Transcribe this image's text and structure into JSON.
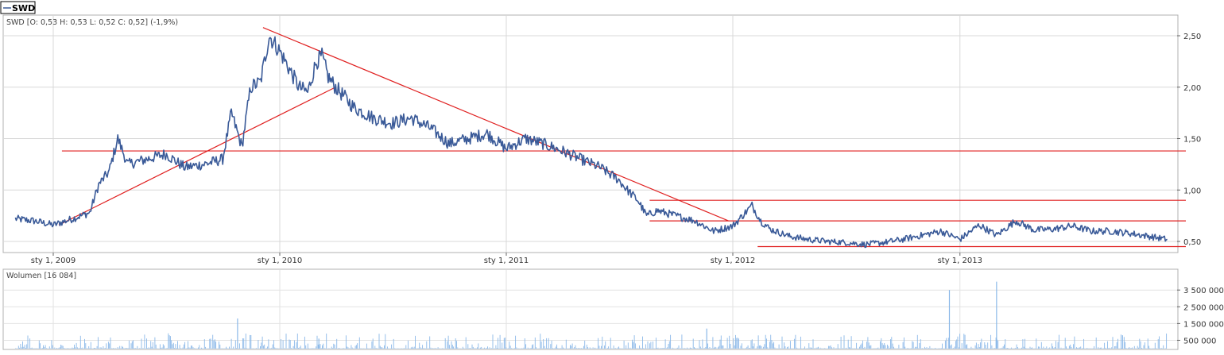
{
  "legend_tab": {
    "label": "SWD"
  },
  "price_panel": {
    "info": "SWD [O: 0,53  H: 0,53  L: 0,52  C: 0,52] (-1,9%)"
  },
  "volume_panel": {
    "info": "Wolumen [16 084]"
  },
  "chart_data": [
    {
      "type": "line",
      "series": [
        {
          "name": "SWD",
          "x": [
            "2008-11-01",
            "2008-12-01",
            "2009-01-01",
            "2009-02-01",
            "2009-03-01",
            "2009-03-15",
            "2009-04-01",
            "2009-04-15",
            "2009-05-01",
            "2009-06-01",
            "2009-07-01",
            "2009-08-01",
            "2009-09-01",
            "2009-10-01",
            "2009-10-15",
            "2009-11-01",
            "2009-11-15",
            "2009-12-01",
            "2009-12-15",
            "2010-01-01",
            "2010-02-01",
            "2010-02-15",
            "2010-03-01",
            "2010-03-10",
            "2010-03-20",
            "2010-04-01",
            "2010-05-01",
            "2010-06-01",
            "2010-07-01",
            "2010-08-01",
            "2010-09-01",
            "2010-10-01",
            "2010-11-01",
            "2010-12-01",
            "2011-01-01",
            "2011-02-01",
            "2011-03-01",
            "2011-04-01",
            "2011-05-01",
            "2011-06-01",
            "2011-07-01",
            "2011-07-15",
            "2011-08-01",
            "2011-08-15",
            "2011-09-01",
            "2011-10-01",
            "2011-11-01",
            "2011-12-01",
            "2012-01-01",
            "2012-02-01",
            "2012-02-15",
            "2012-03-01",
            "2012-04-01",
            "2012-05-01",
            "2012-06-01",
            "2012-07-01",
            "2012-08-01",
            "2012-09-01",
            "2012-10-01",
            "2012-11-01",
            "2012-12-01",
            "2013-01-01",
            "2013-02-01",
            "2013-03-01",
            "2013-04-01",
            "2013-05-01",
            "2013-06-01",
            "2013-07-01",
            "2013-08-01",
            "2013-09-01",
            "2013-10-01",
            "2013-11-01",
            "2013-12-01"
          ],
          "values": [
            0.72,
            0.7,
            0.66,
            0.72,
            0.78,
            1.05,
            1.18,
            1.5,
            1.25,
            1.3,
            1.35,
            1.22,
            1.25,
            1.3,
            1.75,
            1.42,
            2.0,
            2.05,
            2.5,
            2.35,
            2.0,
            1.95,
            2.25,
            2.3,
            2.1,
            2.0,
            1.8,
            1.7,
            1.65,
            1.7,
            1.6,
            1.45,
            1.5,
            1.55,
            1.4,
            1.5,
            1.45,
            1.38,
            1.3,
            1.22,
            1.1,
            1.0,
            0.9,
            0.75,
            0.8,
            0.75,
            0.7,
            0.6,
            0.65,
            0.85,
            0.7,
            0.62,
            0.55,
            0.52,
            0.5,
            0.49,
            0.47,
            0.49,
            0.52,
            0.56,
            0.6,
            0.52,
            0.66,
            0.56,
            0.7,
            0.61,
            0.62,
            0.65,
            0.6,
            0.6,
            0.58,
            0.55,
            0.52
          ]
        }
      ],
      "x_tick_labels": [
        "sty 1, 2009",
        "sty 1, 2010",
        "sty 1, 2011",
        "sty 1, 2012",
        "sty 1, 2013"
      ],
      "y_tick_labels": [
        "0,50",
        "1,00",
        "1,50",
        "2,00",
        "2,50"
      ],
      "ylim": [
        0.45,
        2.58
      ],
      "annotations": [
        {
          "kind": "trendline",
          "from": [
            "2009-01-10",
            0.66
          ],
          "to": [
            "2010-04-01",
            2.0
          ]
        },
        {
          "kind": "trendline",
          "from": [
            "2009-12-05",
            2.58
          ],
          "to": [
            "2011-12-25",
            0.7
          ]
        },
        {
          "kind": "horizontal",
          "from": "2009-01-15",
          "to": "2013-12-31",
          "y": 1.38
        },
        {
          "kind": "horizontal",
          "from": "2011-08-20",
          "to": "2013-12-31",
          "y": 0.9
        },
        {
          "kind": "horizontal",
          "from": "2011-08-20",
          "to": "2013-12-31",
          "y": 0.7
        },
        {
          "kind": "horizontal",
          "from": "2012-02-10",
          "to": "2013-12-31",
          "y": 0.45
        }
      ],
      "grid": true,
      "colors": {
        "line": "#3a5a98",
        "annotation": "#e02020",
        "grid": "#d8d8d8"
      }
    },
    {
      "type": "bar",
      "series": [
        {
          "name": "Wolumen",
          "x": [
            "2009-10-25",
            "2010-03-05",
            "2011-11-20",
            "2012-12-15",
            "2013-03-01",
            "2013-09-20"
          ],
          "values": [
            1800000,
            600000,
            1200000,
            3500000,
            4000000,
            800000
          ]
        }
      ],
      "y_tick_labels": [
        "500 000",
        "1 500 000",
        "2 500 000",
        "3 500 000"
      ],
      "ylim": [
        0,
        4600000
      ],
      "grid": true,
      "colors": {
        "bar": "#8ab8e8"
      }
    }
  ]
}
